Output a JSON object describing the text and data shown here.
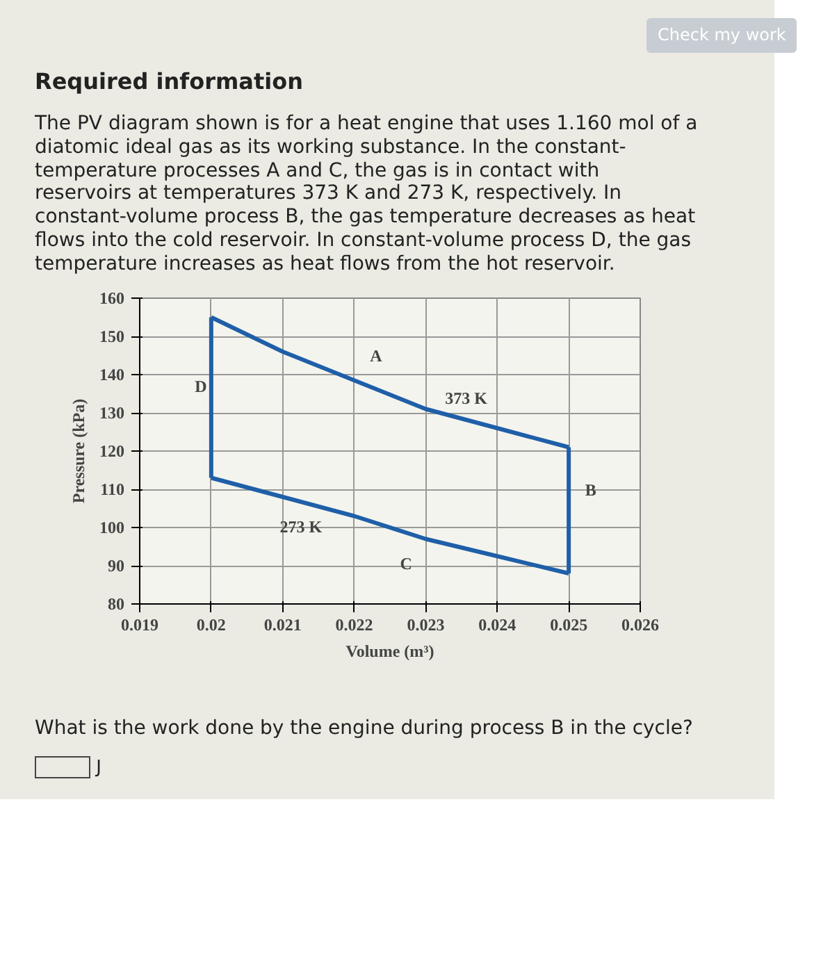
{
  "chart_data": {
    "type": "line",
    "title": "Required information",
    "subtitle": "The PV diagram shown is for a heat engine that uses 1.160 mol of a diatomic ideal gas as its working substance. In the constant-temperature processes A and C, the gas is in contact with reservoirs at temperatures 373 K and 273 K, respectively. In constant-volume process B, the gas temperature decreases as heat flows into the cold reservoir. In constant-volume process D, the gas temperature increases as heat flows from the hot reservoir.",
    "xlabel": "Volume (m³)",
    "ylabel": "Pressure (kPa)",
    "series": [
      {
        "color": "#1f5fa8",
        "x": [
          0.02,
          0.021,
          0.022,
          0.023,
          0.024,
          0.025
        ],
        "values": [
          155,
          146,
          138.5,
          131,
          126,
          121
        ]
      },
      {
        "color": "#1f5fa8",
        "x": [
          0.025,
          0.025
        ],
        "values": [
          121,
          88
        ]
      },
      {
        "color": "#1f5fa8",
        "x": [
          0.025,
          0.024,
          0.023,
          0.022,
          0.021,
          0.02
        ],
        "values": [
          88,
          92.5,
          97,
          103,
          108,
          113
        ]
      },
      {
        "color": "#1f5fa8",
        "x": [
          0.02,
          0.02
        ],
        "values": [
          113,
          155
        ]
      }
    ],
    "xlim": [
      0.019,
      0.026
    ],
    "xticks": [
      0.019,
      0.02,
      0.021,
      0.022,
      0.023,
      0.024,
      0.025,
      0.026
    ],
    "ylim": [
      80,
      160
    ],
    "yticks": [
      80,
      90,
      100,
      110,
      120,
      130,
      140,
      150,
      160
    ],
    "grid": true,
    "line_style": "solid",
    "annotations": [
      "A",
      "373 K",
      "B",
      "273 K",
      "C",
      "D",
      "What is the work done by the engine during process B in the cycle?",
      "J",
      "Check my work"
    ]
  }
}
